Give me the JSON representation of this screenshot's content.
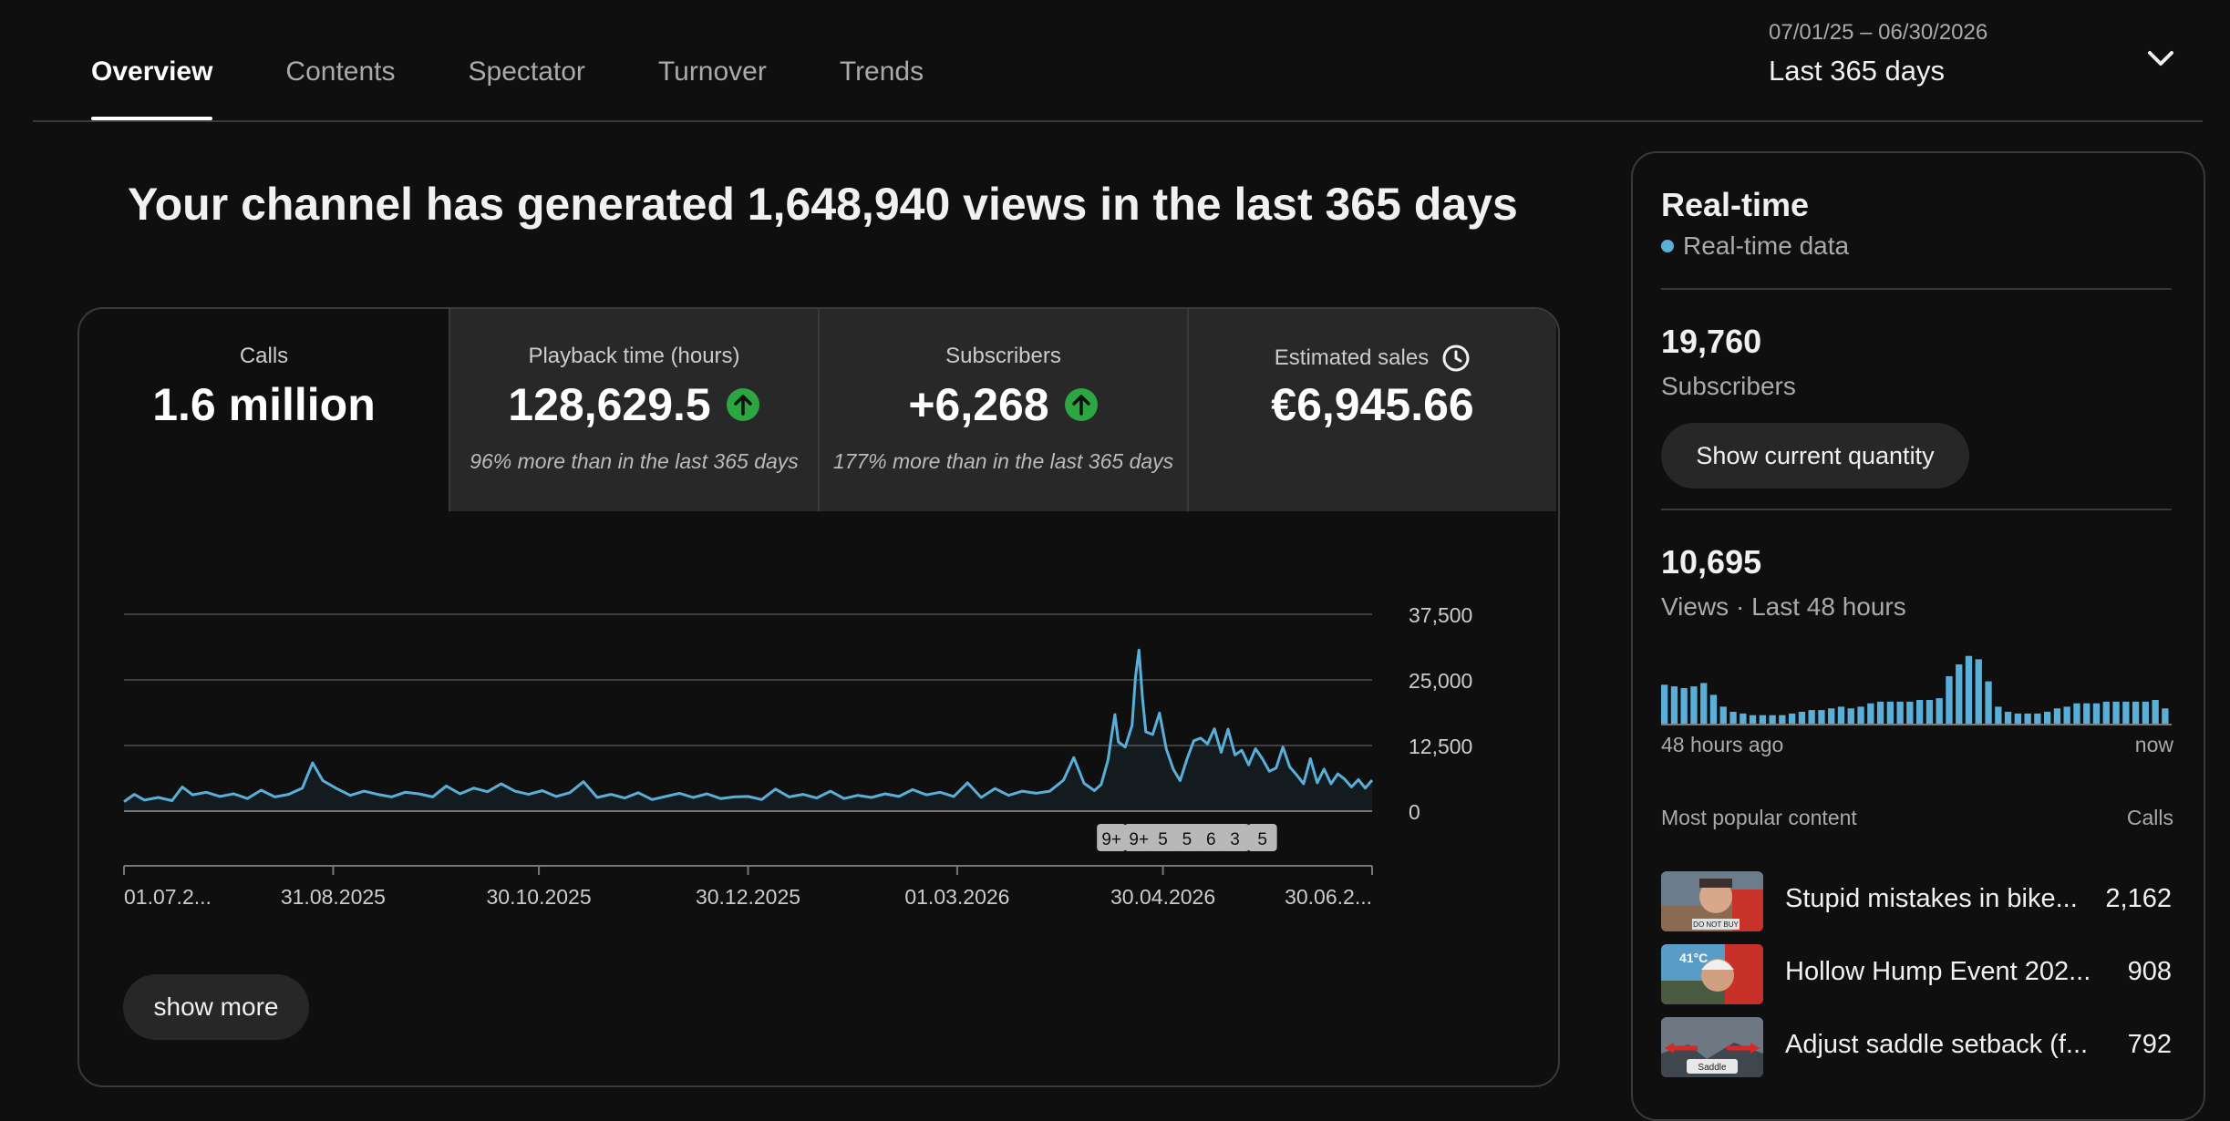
{
  "tabs": [
    {
      "label": "Overview",
      "active": true
    },
    {
      "label": "Contents",
      "active": false
    },
    {
      "label": "Spectator",
      "active": false
    },
    {
      "label": "Turnover",
      "active": false
    },
    {
      "label": "Trends",
      "active": false
    }
  ],
  "date_range": {
    "dates": "07/01/25 – 06/30/2026",
    "label": "Last 365 days"
  },
  "headline": "Your channel has generated 1,648,940 views in the last 365 days",
  "metrics": {
    "calls": {
      "label": "Calls",
      "value": "1.6 million"
    },
    "playback": {
      "label": "Playback time (hours)",
      "value": "128,629.5",
      "note": "96% more than in the last 365 days"
    },
    "subscribers": {
      "label": "Subscribers",
      "value": "+6,268",
      "note": "177% more than in the last 365 days"
    },
    "sales": {
      "label": "Estimated sales",
      "value": "€6,945.66"
    }
  },
  "colors": {
    "accent": "#5aafd9",
    "up": "#2ba640",
    "bg": "#0f0f0f"
  },
  "chart_data": {
    "type": "line",
    "y_tick_labels": [
      "37,500",
      "25,000",
      "12,500",
      "0"
    ],
    "ylim": [
      0,
      37500
    ],
    "x_tick_labels": [
      "01.07.2...",
      "31.08.2025",
      "30.10.2025",
      "30.12.2025",
      "01.03.2026",
      "30.04.2026",
      "30.06.2..."
    ],
    "x_ticks_day": [
      0,
      61,
      121,
      182,
      243,
      303,
      364
    ],
    "series": [
      {
        "points": [
          [
            0,
            1800
          ],
          [
            3,
            3200
          ],
          [
            6,
            2100
          ],
          [
            10,
            2600
          ],
          [
            14,
            2000
          ],
          [
            17,
            4600
          ],
          [
            20,
            3100
          ],
          [
            24,
            3600
          ],
          [
            28,
            2800
          ],
          [
            32,
            3300
          ],
          [
            36,
            2400
          ],
          [
            40,
            4000
          ],
          [
            44,
            2700
          ],
          [
            48,
            3200
          ],
          [
            52,
            4400
          ],
          [
            55,
            9200
          ],
          [
            58,
            5800
          ],
          [
            62,
            4300
          ],
          [
            66,
            3000
          ],
          [
            70,
            3800
          ],
          [
            74,
            3200
          ],
          [
            78,
            2700
          ],
          [
            82,
            3600
          ],
          [
            86,
            3300
          ],
          [
            90,
            2700
          ],
          [
            94,
            4800
          ],
          [
            98,
            3300
          ],
          [
            102,
            4400
          ],
          [
            106,
            3700
          ],
          [
            110,
            5200
          ],
          [
            114,
            3800
          ],
          [
            118,
            3200
          ],
          [
            122,
            3900
          ],
          [
            126,
            2800
          ],
          [
            130,
            3500
          ],
          [
            134,
            5600
          ],
          [
            138,
            2600
          ],
          [
            142,
            3200
          ],
          [
            146,
            2500
          ],
          [
            150,
            3500
          ],
          [
            154,
            2200
          ],
          [
            158,
            2800
          ],
          [
            162,
            3400
          ],
          [
            166,
            2600
          ],
          [
            170,
            3300
          ],
          [
            174,
            2400
          ],
          [
            178,
            2700
          ],
          [
            182,
            2800
          ],
          [
            186,
            2200
          ],
          [
            190,
            4200
          ],
          [
            194,
            2700
          ],
          [
            198,
            3200
          ],
          [
            202,
            2500
          ],
          [
            206,
            3800
          ],
          [
            210,
            2400
          ],
          [
            214,
            3000
          ],
          [
            218,
            2600
          ],
          [
            222,
            3300
          ],
          [
            226,
            2800
          ],
          [
            230,
            4100
          ],
          [
            234,
            3100
          ],
          [
            238,
            3600
          ],
          [
            242,
            2800
          ],
          [
            246,
            5400
          ],
          [
            250,
            2600
          ],
          [
            254,
            4300
          ],
          [
            258,
            3000
          ],
          [
            262,
            3800
          ],
          [
            266,
            3400
          ],
          [
            270,
            3800
          ],
          [
            274,
            5900
          ],
          [
            277,
            10200
          ],
          [
            280,
            5300
          ],
          [
            283,
            3900
          ],
          [
            285,
            5100
          ],
          [
            287,
            9800
          ],
          [
            288,
            14300
          ],
          [
            289,
            18400
          ],
          [
            290,
            13200
          ],
          [
            292,
            12200
          ],
          [
            294,
            16300
          ],
          [
            295,
            25600
          ],
          [
            296,
            30700
          ],
          [
            297,
            21800
          ],
          [
            298,
            15100
          ],
          [
            300,
            14600
          ],
          [
            302,
            18700
          ],
          [
            304,
            11800
          ],
          [
            306,
            8000
          ],
          [
            308,
            5800
          ],
          [
            310,
            9900
          ],
          [
            312,
            13400
          ],
          [
            314,
            13900
          ],
          [
            316,
            12800
          ],
          [
            318,
            15700
          ],
          [
            320,
            11200
          ],
          [
            322,
            15600
          ],
          [
            324,
            10700
          ],
          [
            326,
            11600
          ],
          [
            328,
            8800
          ],
          [
            330,
            11900
          ],
          [
            332,
            10000
          ],
          [
            334,
            7600
          ],
          [
            336,
            8200
          ],
          [
            338,
            12200
          ],
          [
            340,
            8400
          ],
          [
            342,
            6900
          ],
          [
            344,
            5200
          ],
          [
            346,
            10000
          ],
          [
            348,
            5400
          ],
          [
            350,
            8000
          ],
          [
            352,
            5200
          ],
          [
            354,
            7100
          ],
          [
            356,
            6100
          ],
          [
            358,
            4600
          ],
          [
            360,
            6000
          ],
          [
            362,
            4400
          ],
          [
            364,
            5900
          ]
        ]
      }
    ],
    "annotations": [
      "9+",
      "9+",
      "5",
      "5",
      "6",
      "3",
      "5"
    ],
    "annotation_days": [
      288,
      296,
      303,
      310,
      317,
      324,
      332
    ]
  },
  "show_more_label": "show more",
  "realtime": {
    "title": "Real-time",
    "subtitle": "Real-time data",
    "subscribers_value": "19,760",
    "subscribers_label": "Subscribers",
    "show_quantity_label": "Show current quantity",
    "views_value": "10,695",
    "views_label": "Views · Last 48 hours",
    "views_bars": [
      23,
      22,
      21,
      22,
      24,
      17,
      10,
      7,
      6,
      5,
      5,
      5,
      5,
      6,
      7,
      8,
      8,
      9,
      10,
      9,
      10,
      12,
      13,
      13,
      13,
      13,
      14,
      14,
      15,
      28,
      35,
      40,
      38,
      25,
      10,
      7,
      6,
      6,
      6,
      7,
      9,
      10,
      12,
      12,
      12,
      13,
      13,
      13,
      13,
      13,
      14,
      9
    ],
    "axis_left": "48 hours ago",
    "axis_right": "now",
    "popular_header": "Most popular content",
    "popular_header_right": "Calls",
    "popular": [
      {
        "title": "Stupid mistakes in bike...",
        "value": "2,162",
        "thumb_text": "DO NOT BUY",
        "thumb_icon": "thumb-cyclist-selfie"
      },
      {
        "title": "Hollow Hump Event 202...",
        "value": "908",
        "thumb_text": "41°C",
        "thumb_icon": "thumb-cyclist-helmet"
      },
      {
        "title": "Adjust saddle setback (f...",
        "value": "792",
        "thumb_text": "Saddle",
        "thumb_icon": "thumb-saddle-diagram"
      }
    ]
  }
}
